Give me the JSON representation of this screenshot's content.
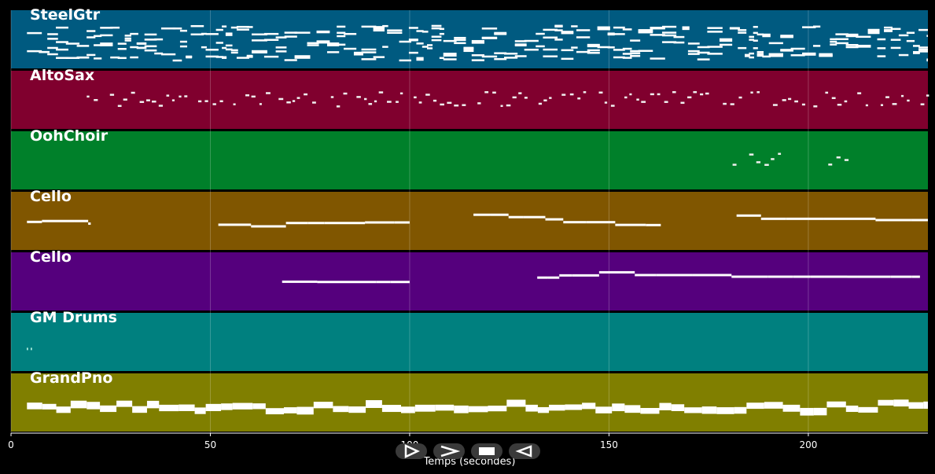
{
  "axis": {
    "label": "Temps (secondes)",
    "xlim": [
      0,
      230
    ],
    "ticks": [
      0,
      50,
      100,
      150,
      200
    ]
  },
  "tracks": [
    {
      "name": "SteelGtr",
      "color": "#005a80",
      "density": "dense",
      "pitch_range": [
        0.25,
        0.85
      ],
      "segments": [
        [
          4,
          230
        ]
      ]
    },
    {
      "name": "AltoSax",
      "color": "#80002e",
      "density": "sparse",
      "pitch_range": [
        0.35,
        0.6
      ],
      "segments": [
        [
          19,
          100
        ],
        [
          101,
          230
        ]
      ]
    },
    {
      "name": "OohChoir",
      "color": "#00802a",
      "density": "sparse",
      "pitch_range": [
        0.35,
        0.6
      ],
      "segments": [
        [
          181,
          188
        ],
        [
          189,
          194
        ],
        [
          205,
          211
        ]
      ]
    },
    {
      "name": "Cello",
      "color": "#805600",
      "density": "line",
      "pitch_range": [
        0.35,
        0.6
      ],
      "segments": [
        [
          4,
          20
        ],
        [
          52,
          100
        ],
        [
          116,
          163
        ],
        [
          182,
          230
        ]
      ]
    },
    {
      "name": "Cello",
      "color": "#55007d",
      "density": "line",
      "pitch_range": [
        0.3,
        0.55
      ],
      "segments": [
        [
          68,
          100
        ],
        [
          132,
          228
        ]
      ]
    },
    {
      "name": "GM Drums",
      "color": "#00807f",
      "density": "dots",
      "pitch_range": [
        0.6,
        0.7
      ],
      "segments": [
        [
          2,
          3
        ]
      ]
    },
    {
      "name": "GrandPno",
      "color": "#807f00",
      "density": "block",
      "pitch_range": [
        0.45,
        0.6
      ],
      "segments": [
        [
          4,
          230
        ]
      ]
    }
  ],
  "controls": [
    {
      "name": "play-button",
      "icon": "play-outline-icon"
    },
    {
      "name": "forward-button",
      "icon": "chevron-right-icon"
    },
    {
      "name": "stop-button",
      "icon": "stop-square-icon"
    },
    {
      "name": "rewind-button",
      "icon": "rewind-icon"
    }
  ]
}
